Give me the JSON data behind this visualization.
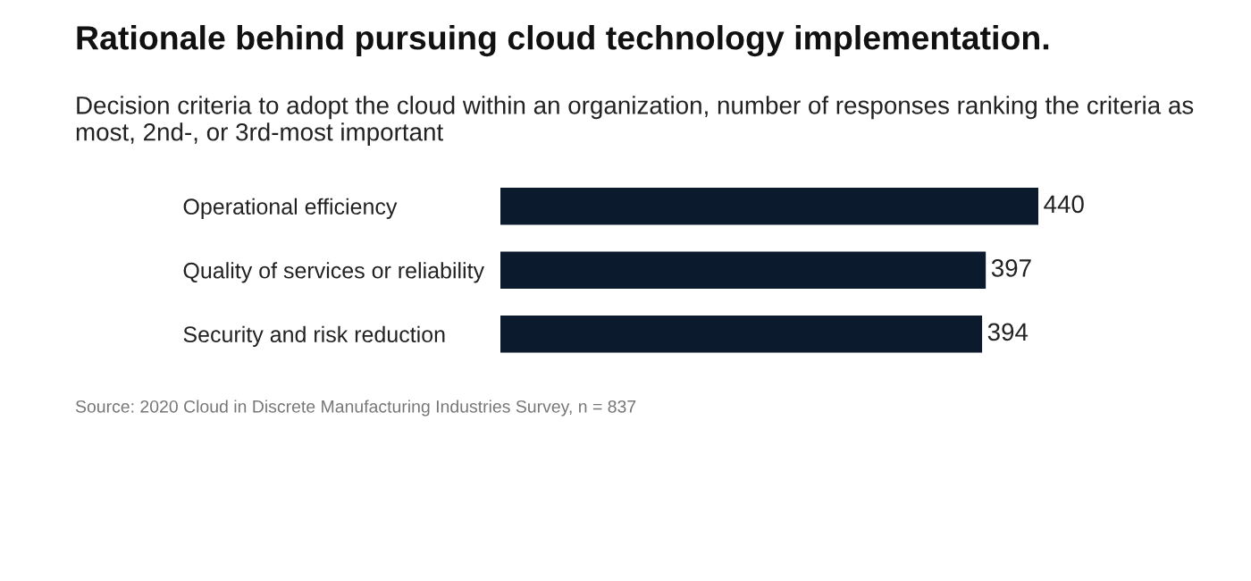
{
  "chart_data": {
    "type": "bar",
    "orientation": "horizontal",
    "title": "Rationale behind pursuing cloud technology implementation.",
    "subtitle": "Decision criteria to adopt the cloud within an organization, number of responses ranking the criteria as most, 2nd-, or 3rd-most important",
    "categories": [
      "Operational efficiency",
      "Quality of services or reliability",
      "Security and risk reduction"
    ],
    "values": [
      440,
      397,
      394
    ],
    "color": "#0b1a2c",
    "data_labels": true,
    "tick_labels": "y",
    "grid": false,
    "legend": false,
    "annotations": [
      "Source: 2020 Cloud in Discrete Manufacturing Industries Survey, n = 837"
    ]
  }
}
